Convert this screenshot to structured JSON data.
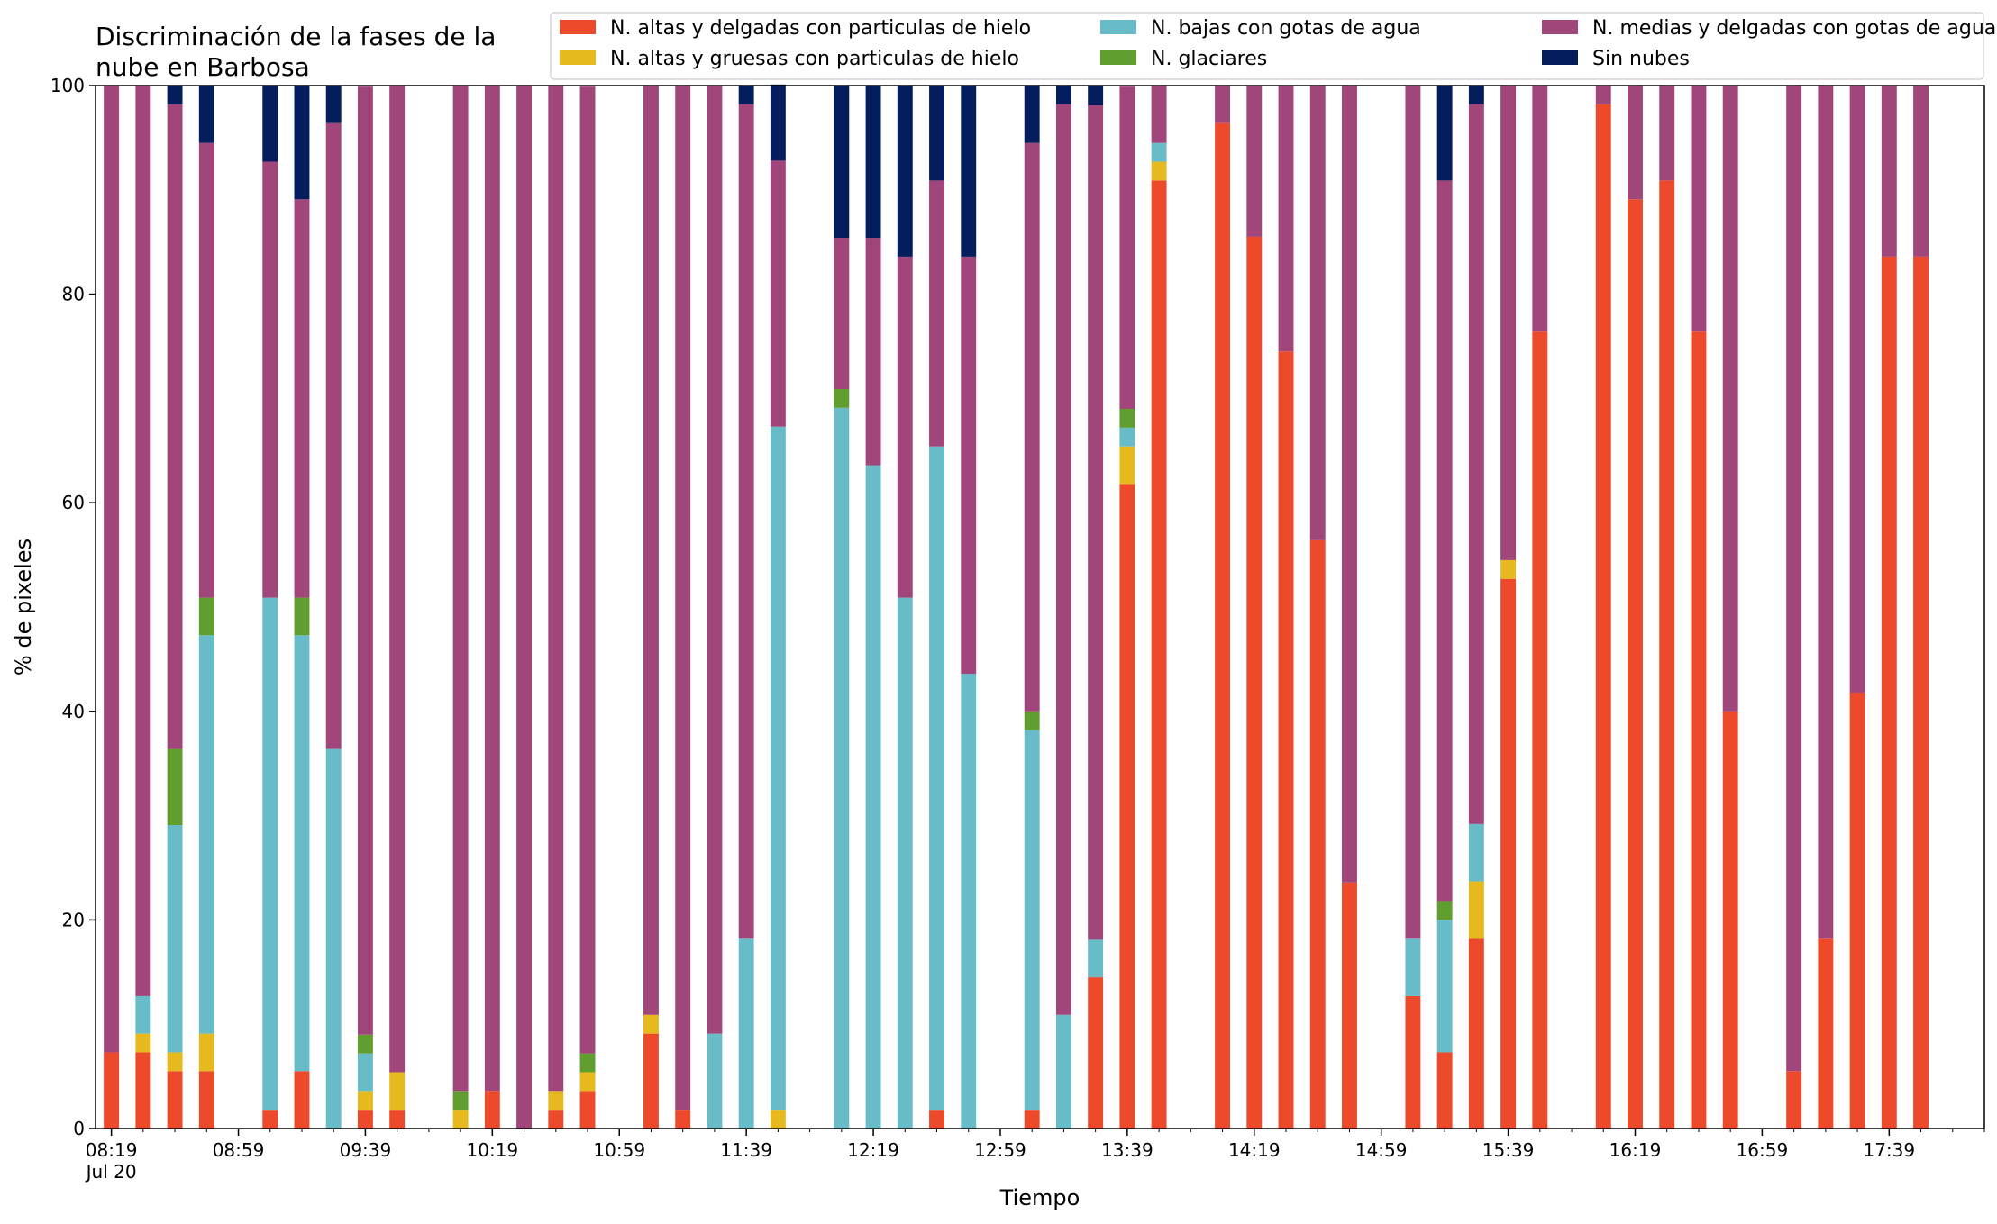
{
  "chart_data": {
    "type": "bar",
    "stacked": true,
    "title_lines": [
      "Discriminación de la fases de la",
      "nube en Barbosa"
    ],
    "xlabel": "Tiempo",
    "ylabel": "% de pixeles",
    "ylim": [
      0,
      100
    ],
    "yticks": [
      0,
      20,
      40,
      60,
      80,
      100
    ],
    "xlim": [
      "08:14",
      "18:09"
    ],
    "x_major_ticks": [
      "08:19",
      "08:59",
      "09:39",
      "10:19",
      "10:59",
      "11:39",
      "12:19",
      "12:59",
      "13:39",
      "14:19",
      "14:59",
      "15:39",
      "16:19",
      "16:59",
      "17:39"
    ],
    "x_date_label": "Jul 20",
    "x_minor_tick_interval_minutes": 10,
    "legend": {
      "position": "top-right",
      "columns": 3
    },
    "series_order": [
      "altas_delgadas",
      "altas_gruesas",
      "bajas",
      "glaciares",
      "medias",
      "sin_nubes"
    ],
    "series": [
      {
        "key": "altas_delgadas",
        "name": "N. altas y delgadas con particulas de hielo",
        "color": "#ED4A2B"
      },
      {
        "key": "altas_gruesas",
        "name": "N. altas y gruesas con particulas de hielo",
        "color": "#E6B91E"
      },
      {
        "key": "bajas",
        "name": "N. bajas con gotas de agua",
        "color": "#67BCC8"
      },
      {
        "key": "glaciares",
        "name": "N. glaciares",
        "color": "#5F9E2F"
      },
      {
        "key": "medias",
        "name": "N. medias y delgadas con gotas de agua",
        "color": "#A0467A"
      },
      {
        "key": "sin_nubes",
        "name": "Sin nubes",
        "color": "#041E5D"
      }
    ],
    "bars": [
      {
        "time": "08:19",
        "values": [
          7.3,
          0,
          0,
          0,
          92.7,
          0
        ]
      },
      {
        "time": "08:29",
        "values": [
          7.3,
          1.8,
          3.6,
          0,
          87.3,
          0
        ]
      },
      {
        "time": "08:39",
        "values": [
          5.5,
          1.8,
          21.8,
          7.3,
          61.8,
          1.8
        ]
      },
      {
        "time": "08:49",
        "values": [
          5.5,
          3.6,
          38.2,
          3.6,
          43.6,
          5.5
        ]
      },
      {
        "time": "09:09",
        "values": [
          1.8,
          0,
          49.1,
          0,
          41.8,
          7.3
        ]
      },
      {
        "time": "09:19",
        "values": [
          5.5,
          0,
          41.8,
          3.6,
          38.2,
          10.9
        ]
      },
      {
        "time": "09:29",
        "values": [
          0,
          0,
          36.4,
          0,
          60.0,
          3.6
        ]
      },
      {
        "time": "09:39",
        "values": [
          1.8,
          1.8,
          3.6,
          1.8,
          90.9,
          0
        ]
      },
      {
        "time": "09:49",
        "values": [
          1.8,
          3.6,
          0,
          0,
          94.6,
          0
        ]
      },
      {
        "time": "10:09",
        "values": [
          0,
          1.8,
          0,
          1.8,
          96.4,
          0
        ]
      },
      {
        "time": "10:19",
        "values": [
          3.6,
          0,
          0,
          0,
          96.4,
          0
        ]
      },
      {
        "time": "10:29",
        "values": [
          0,
          0,
          0,
          0,
          100,
          0
        ]
      },
      {
        "time": "10:39",
        "values": [
          1.8,
          1.8,
          0,
          0,
          96.4,
          0
        ]
      },
      {
        "time": "10:49",
        "values": [
          3.6,
          1.8,
          0,
          1.8,
          92.7,
          0
        ]
      },
      {
        "time": "11:09",
        "values": [
          9.1,
          1.8,
          0,
          0,
          89.1,
          0
        ]
      },
      {
        "time": "11:19",
        "values": [
          1.8,
          0,
          0,
          0,
          98.2,
          0
        ]
      },
      {
        "time": "11:29",
        "values": [
          0,
          0,
          9.1,
          0,
          90.9,
          0
        ]
      },
      {
        "time": "11:39",
        "values": [
          0,
          0,
          18.2,
          0,
          80.0,
          1.8
        ]
      },
      {
        "time": "11:49",
        "values": [
          0,
          1.8,
          65.5,
          0,
          25.5,
          7.3
        ]
      },
      {
        "time": "12:09",
        "values": [
          0,
          0,
          69.1,
          1.8,
          14.5,
          14.6
        ]
      },
      {
        "time": "12:19",
        "values": [
          0,
          0,
          63.6,
          0,
          21.8,
          14.6
        ]
      },
      {
        "time": "12:29",
        "values": [
          0,
          0,
          50.9,
          0,
          32.7,
          16.4
        ]
      },
      {
        "time": "12:39",
        "values": [
          1.8,
          0,
          63.6,
          0,
          25.5,
          9.1
        ]
      },
      {
        "time": "12:49",
        "values": [
          0,
          0,
          43.6,
          0,
          40.0,
          16.4
        ]
      },
      {
        "time": "13:09",
        "values": [
          1.8,
          0,
          36.4,
          1.8,
          54.5,
          5.5
        ]
      },
      {
        "time": "13:19",
        "values": [
          0,
          0,
          10.9,
          0,
          87.3,
          1.8
        ]
      },
      {
        "time": "13:29",
        "values": [
          14.5,
          0,
          3.6,
          0,
          80.0,
          1.9
        ]
      },
      {
        "time": "13:39",
        "values": [
          61.8,
          3.6,
          1.8,
          1.8,
          30.9,
          0
        ]
      },
      {
        "time": "13:49",
        "values": [
          90.9,
          1.8,
          1.8,
          0,
          5.5,
          0
        ]
      },
      {
        "time": "14:09",
        "values": [
          96.4,
          0,
          0,
          0,
          3.6,
          0
        ]
      },
      {
        "time": "14:19",
        "values": [
          85.5,
          0,
          0,
          0,
          14.5,
          0
        ]
      },
      {
        "time": "14:29",
        "values": [
          74.5,
          0,
          0,
          0,
          25.5,
          0
        ]
      },
      {
        "time": "14:39",
        "values": [
          56.4,
          0,
          0,
          0,
          43.6,
          0
        ]
      },
      {
        "time": "14:49",
        "values": [
          23.6,
          0,
          0,
          0,
          76.4,
          0
        ]
      },
      {
        "time": "15:09",
        "values": [
          12.7,
          0,
          5.5,
          0,
          81.8,
          0
        ]
      },
      {
        "time": "15:19",
        "values": [
          7.3,
          0,
          12.7,
          1.8,
          69.1,
          9.1
        ]
      },
      {
        "time": "15:29",
        "values": [
          18.2,
          5.5,
          5.5,
          0,
          69.0,
          1.8
        ]
      },
      {
        "time": "15:39",
        "values": [
          52.7,
          1.8,
          0,
          0,
          45.5,
          0
        ]
      },
      {
        "time": "15:49",
        "values": [
          76.4,
          0,
          0,
          0,
          23.6,
          0
        ]
      },
      {
        "time": "16:09",
        "values": [
          98.2,
          0,
          0,
          0,
          1.8,
          0
        ]
      },
      {
        "time": "16:19",
        "values": [
          89.1,
          0,
          0,
          0,
          10.9,
          0
        ]
      },
      {
        "time": "16:29",
        "values": [
          90.9,
          0,
          0,
          0,
          9.1,
          0
        ]
      },
      {
        "time": "16:39",
        "values": [
          76.4,
          0,
          0,
          0,
          23.6,
          0
        ]
      },
      {
        "time": "16:49",
        "values": [
          40.0,
          0,
          0,
          0,
          60.0,
          0
        ]
      },
      {
        "time": "17:09",
        "values": [
          5.5,
          0,
          0,
          0,
          94.5,
          0
        ]
      },
      {
        "time": "17:19",
        "values": [
          18.2,
          0,
          0,
          0,
          81.8,
          0
        ]
      },
      {
        "time": "17:29",
        "values": [
          41.8,
          0,
          0,
          0,
          58.2,
          0
        ]
      },
      {
        "time": "17:39",
        "values": [
          83.6,
          0,
          0,
          0,
          16.4,
          0
        ]
      },
      {
        "time": "17:49",
        "values": [
          83.6,
          0,
          0,
          0,
          16.4,
          0
        ]
      }
    ]
  }
}
